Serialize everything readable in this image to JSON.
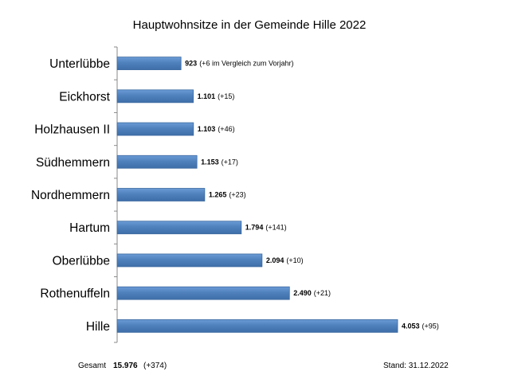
{
  "chart_data": {
    "type": "bar",
    "orientation": "horizontal",
    "title": "Hauptwohnsitze in der Gemeinde Hille 2022",
    "categories": [
      "Unterlübbe",
      "Eickhorst",
      "Holzhausen II",
      "Südhemmern",
      "Nordhemmern",
      "Hartum",
      "Oberlübbe",
      "Rothenuffeln",
      "Hille"
    ],
    "values": [
      923,
      1101,
      1103,
      1153,
      1265,
      1794,
      2094,
      2490,
      4053
    ],
    "value_labels": [
      "923",
      "1.101",
      "1.103",
      "1.153",
      "1.265",
      "1.794",
      "2.094",
      "2.490",
      "4.053"
    ],
    "change_labels": [
      "(+6 im Vergleich zum Vorjahr)",
      "(+15)",
      "(+46)",
      "(+17)",
      "(+23)",
      "(+141)",
      "(+10)",
      "(+21)",
      "(+95)"
    ],
    "xlim": [
      0,
      4500
    ],
    "grid": false,
    "bar_color": "#4f81bd"
  },
  "footer": {
    "total_label": "Gesamt",
    "total_value": "15.976",
    "total_change": "(+374)",
    "date": "Stand: 31.12.2022"
  }
}
